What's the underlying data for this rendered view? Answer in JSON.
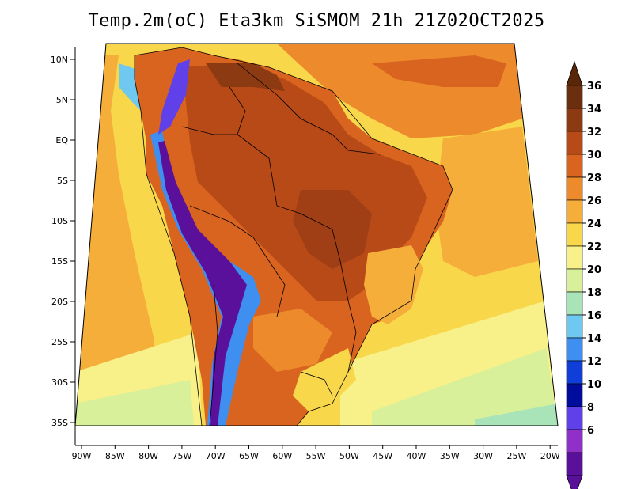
{
  "title": "Temp.2m(oC) Eta3km SiSMOM 21h 21Z02OCT2025",
  "latitude_ticks": [
    "10N",
    "5N",
    "EQ",
    "5S",
    "10S",
    "15S",
    "20S",
    "25S",
    "30S",
    "35S"
  ],
  "longitude_ticks": [
    "90W",
    "85W",
    "80W",
    "75W",
    "70W",
    "65W",
    "60W",
    "55W",
    "50W",
    "45W",
    "40W",
    "35W",
    "30W",
    "25W",
    "20W"
  ],
  "colorbar": {
    "labels": [
      "36",
      "34",
      "32",
      "30",
      "28",
      "26",
      "24",
      "22",
      "20",
      "18",
      "16",
      "14",
      "12",
      "10",
      "8",
      "6"
    ],
    "colors": [
      "#6b2e0f",
      "#8b3a12",
      "#b84a18",
      "#d8641f",
      "#ec8a2c",
      "#f5ae3a",
      "#f8d84a",
      "#f8f088",
      "#d8f09a",
      "#a8e4b8",
      "#6fc8f0",
      "#3f8ff0",
      "#0f3fd8",
      "#000c9c",
      "#6040e8",
      "#9030c8",
      "#5a109a"
    ],
    "min_arrow_color": "#5a109a",
    "max_arrow_color": "#5a2608"
  },
  "colors": {
    "ocean_warm": "#f5ae3a",
    "ocean_mid": "#f8d84a",
    "ocean_cool": "#f8f088",
    "ocean_cold": "#d8f09a",
    "land_hot": "#b84a18",
    "land_hottest": "#8b3a12",
    "land_warm": "#d8641f",
    "andes_cold": "#3f5fd0",
    "andes_coldest": "#5a109a",
    "border": "#000000"
  }
}
